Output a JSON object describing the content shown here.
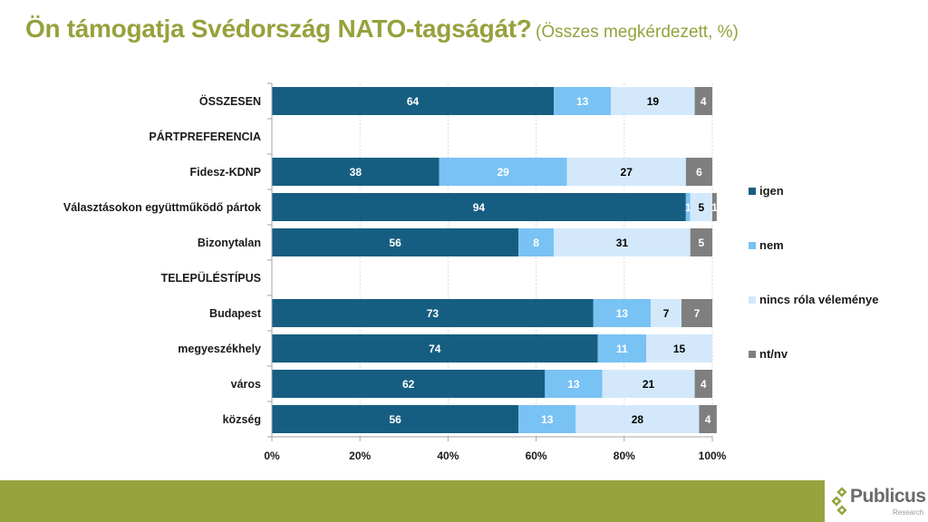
{
  "title": {
    "main": "Ön támogatja Svédország NATO-tagságát?",
    "subtitle": "(Összes megkérdezett, %)"
  },
  "chart_data": {
    "type": "bar",
    "orientation": "horizontal",
    "stacked": "100%",
    "title": "Ön támogatja Svédország NATO-tagságát?",
    "subtitle": "(Összes megkérdezett, %)",
    "xlabel": "",
    "ylabel": "",
    "xlim": [
      0,
      100
    ],
    "x_ticks": [
      "0%",
      "20%",
      "40%",
      "60%",
      "80%",
      "100%"
    ],
    "grid": "vertical dashed",
    "legend_position": "right",
    "categories": [
      "ÖSSZESEN",
      "PÁRTPREFERENCIA",
      "Fidesz-KDNP",
      "Választásokon együttműködő pártok",
      "Bizonytalan",
      "TELEPÜLÉSTÍPUS",
      "Budapest",
      "megyeszékhely",
      "város",
      "község"
    ],
    "series": [
      {
        "name": "igen",
        "color": "#165e81",
        "label_color": "#ffffff",
        "values": [
          64,
          null,
          38,
          94,
          56,
          null,
          73,
          74,
          62,
          56
        ]
      },
      {
        "name": "nem",
        "color": "#79c2f4",
        "label_color": "#ffffff",
        "values": [
          13,
          null,
          29,
          1,
          8,
          null,
          13,
          11,
          13,
          13
        ]
      },
      {
        "name": "nincs róla véleménye",
        "color": "#d3e9fb",
        "label_color": "#000000",
        "values": [
          19,
          null,
          27,
          5,
          31,
          null,
          7,
          15,
          21,
          28
        ]
      },
      {
        "name": "nt/nv",
        "color": "#7f7f7f",
        "label_color": "#ffffff",
        "values": [
          4,
          null,
          6,
          1,
          5,
          null,
          7,
          0,
          4,
          4
        ]
      }
    ]
  },
  "footer": {
    "brand": "Publicus",
    "brand_sub": "Research",
    "band_color": "#97a33e"
  }
}
